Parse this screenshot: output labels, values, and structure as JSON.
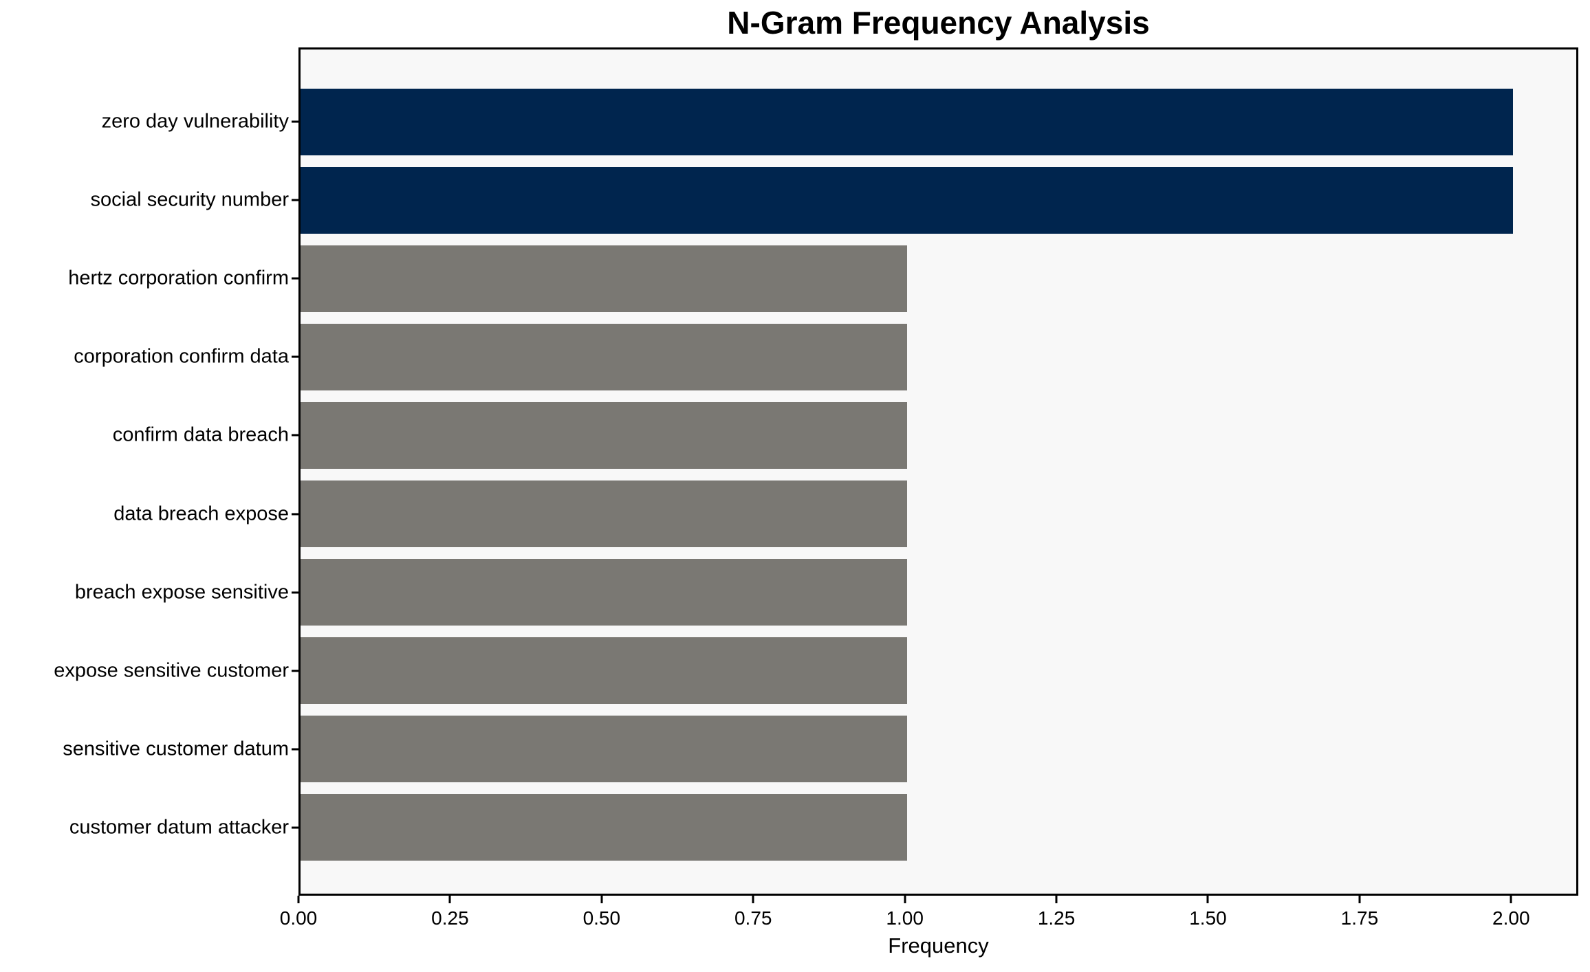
{
  "chart_data": {
    "type": "bar",
    "orientation": "horizontal",
    "title": "N-Gram Frequency Analysis",
    "xlabel": "Frequency",
    "ylabel": "",
    "categories": [
      "zero day vulnerability",
      "social security number",
      "hertz corporation confirm",
      "corporation confirm data",
      "confirm data breach",
      "data breach expose",
      "breach expose sensitive",
      "expose sensitive customer",
      "sensitive customer datum",
      "customer datum attacker"
    ],
    "values": [
      2,
      2,
      1,
      1,
      1,
      1,
      1,
      1,
      1,
      1
    ],
    "bar_colors": [
      "#00254e",
      "#00254e",
      "#7a7873",
      "#7a7873",
      "#7a7873",
      "#7a7873",
      "#7a7873",
      "#7a7873",
      "#7a7873",
      "#7a7873"
    ],
    "xlim": [
      0,
      2.104
    ],
    "xtick_values": [
      0,
      0.25,
      0.5,
      0.75,
      1,
      1.25,
      1.5,
      1.75,
      2
    ],
    "xtick_labels": [
      "0.00",
      "0.25",
      "0.50",
      "0.75",
      "1.00",
      "1.25",
      "1.50",
      "1.75",
      "2.00"
    ],
    "grid": false,
    "legend": false,
    "colors": {
      "highlight_bar": "#00254e",
      "default_bar": "#7a7873",
      "plot_background": "#f8f8f8",
      "figure_background": "#ffffff",
      "spine": "#000000",
      "text": "#000000"
    }
  }
}
